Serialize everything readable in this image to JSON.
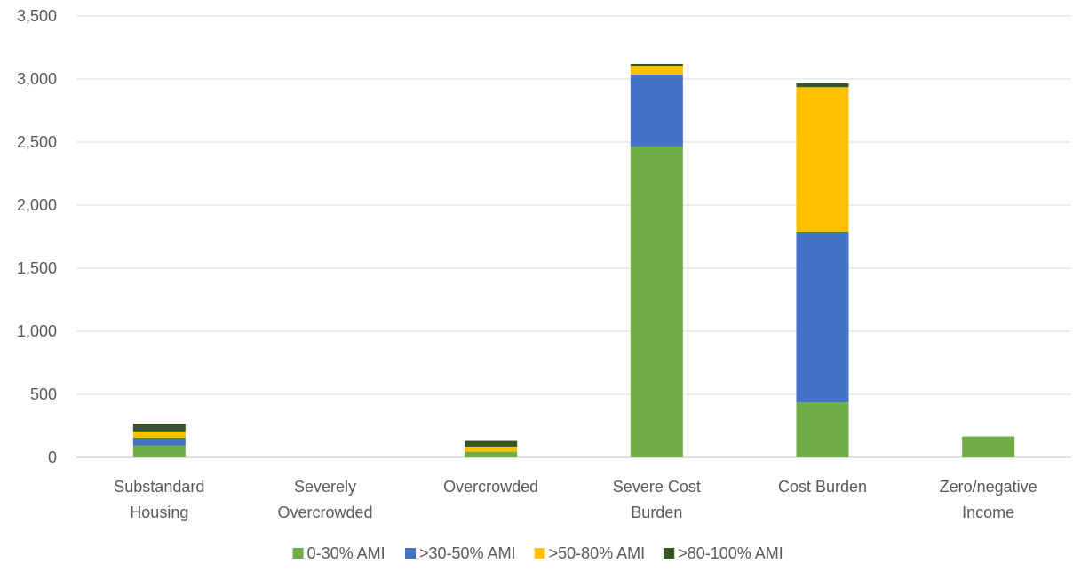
{
  "chart_data": {
    "type": "bar",
    "stacked": true,
    "title": "",
    "xlabel": "",
    "ylabel": "",
    "ylim": [
      0,
      3500
    ],
    "y_ticks": [
      0,
      500,
      1000,
      1500,
      2000,
      2500,
      3000,
      3500
    ],
    "y_tick_labels": [
      "0",
      "500",
      "1,000",
      "1,500",
      "2,000",
      "2,500",
      "3,000",
      "3,500"
    ],
    "grid": true,
    "legend_position": "bottom",
    "categories": [
      [
        "Substandard",
        "Housing"
      ],
      [
        "Severely",
        "Overcrowded"
      ],
      [
        "Overcrowded"
      ],
      [
        "Severe Cost",
        "Burden"
      ],
      [
        "Cost Burden"
      ],
      [
        "Zero/negative",
        "Income"
      ]
    ],
    "series": [
      {
        "name": "0-30% AMI",
        "color": "#70AD47",
        "values": [
          95,
          0,
          45,
          2465,
          435,
          165
        ]
      },
      {
        "name": ">30-50% AMI",
        "color": "#4472C4",
        "values": [
          60,
          0,
          0,
          570,
          1355,
          0
        ]
      },
      {
        "name": ">50-80% AMI",
        "color": "#FFC000",
        "values": [
          50,
          0,
          40,
          70,
          1145,
          0
        ]
      },
      {
        "name": ">80-100% AMI",
        "color": "#375623",
        "values": [
          60,
          0,
          45,
          15,
          30,
          0
        ]
      }
    ]
  }
}
